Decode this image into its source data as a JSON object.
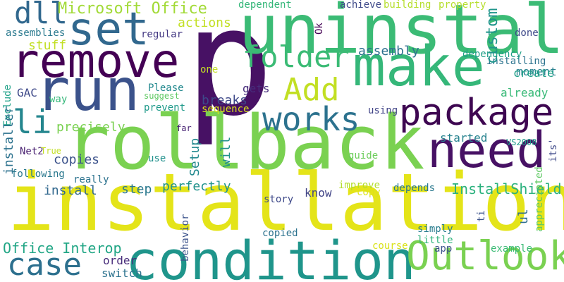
{
  "words": [
    {
      "text": "p",
      "color": "#471164",
      "rotated": false
    },
    {
      "text": "installation",
      "color": "#e4e419",
      "rotated": false
    },
    {
      "text": "rollback",
      "color": "#7ad151",
      "rotated": false
    },
    {
      "text": "uninstall",
      "color": "#3bbb75",
      "rotated": false
    },
    {
      "text": "condition",
      "color": "#1f958b",
      "rotated": false
    },
    {
      "text": "make",
      "color": "#35b779",
      "rotated": false
    },
    {
      "text": "need",
      "color": "#471164",
      "rotated": false
    },
    {
      "text": "package",
      "color": "#3e0751",
      "rotated": false
    },
    {
      "text": "remove",
      "color": "#440154",
      "rotated": false
    },
    {
      "text": "run",
      "color": "#3b528b",
      "rotated": false
    },
    {
      "text": "set",
      "color": "#31688e",
      "rotated": false
    },
    {
      "text": "Outlook",
      "color": "#7ad151",
      "rotated": false
    },
    {
      "text": "works",
      "color": "#2c728e",
      "rotated": false
    },
    {
      "text": "folder",
      "color": "#3bbb75",
      "rotated": false
    },
    {
      "text": "Add",
      "color": "#c2df23",
      "rotated": false
    },
    {
      "text": "case",
      "color": "#2d708e",
      "rotated": false
    },
    {
      "text": "dll",
      "color": "#31688e",
      "rotated": false
    },
    {
      "text": "li",
      "color": "#24868e",
      "rotated": false
    },
    {
      "text": "Microsoft Office",
      "color": "#a2da37",
      "rotated": false
    },
    {
      "text": "Office Interop",
      "color": "#21a685",
      "rotated": false
    },
    {
      "text": "InstallShield",
      "color": "#2cb17e",
      "rotated": false
    },
    {
      "text": "assembly",
      "color": "#2d708e",
      "rotated": false
    },
    {
      "text": "moment",
      "color": "#27808e",
      "rotated": false
    },
    {
      "text": "installing",
      "color": "#2c738e",
      "rotated": false
    },
    {
      "text": "create",
      "color": "#1fa188",
      "rotated": false
    },
    {
      "text": "already",
      "color": "#38b977",
      "rotated": false
    },
    {
      "text": "precisely",
      "color": "#7ad151",
      "rotated": false
    },
    {
      "text": "copies",
      "color": "#3b528b",
      "rotated": false
    },
    {
      "text": "perfectly",
      "color": "#20928c",
      "rotated": false
    },
    {
      "text": "install",
      "color": "#31688e",
      "rotated": false
    },
    {
      "text": "step",
      "color": "#2a788e",
      "rotated": false
    },
    {
      "text": "breaks",
      "color": "#3e4989",
      "rotated": false
    },
    {
      "text": "gets",
      "color": "#472d7b",
      "rotated": false
    },
    {
      "text": "started",
      "color": "#26828e",
      "rotated": false
    },
    {
      "text": "order",
      "color": "#472c7a",
      "rotated": false
    },
    {
      "text": "switch",
      "color": "#2c728e",
      "rotated": false
    },
    {
      "text": "know",
      "color": "#414487",
      "rotated": false
    },
    {
      "text": "depends",
      "color": "#2a788e",
      "rotated": false
    },
    {
      "text": "actions",
      "color": "#c2df23",
      "rotated": false
    },
    {
      "text": "dependent",
      "color": "#35b779",
      "rotated": false
    },
    {
      "text": "achieve",
      "color": "#3e4989",
      "rotated": false
    },
    {
      "text": "building",
      "color": "#b5de2b",
      "rotated": false
    },
    {
      "text": "property",
      "color": "#b5de2b",
      "rotated": false
    },
    {
      "text": "regular",
      "color": "#443983",
      "rotated": false
    },
    {
      "text": "assemblies",
      "color": "#29798e",
      "rotated": false
    },
    {
      "text": "stuff",
      "color": "#c2df23",
      "rotated": false
    },
    {
      "text": "dependency",
      "color": "#1f9f88",
      "rotated": false
    },
    {
      "text": "done",
      "color": "#3e4989",
      "rotated": false
    },
    {
      "text": "one",
      "color": "#c2df23",
      "rotated": false
    },
    {
      "text": "Please",
      "color": "#23898e",
      "rotated": false
    },
    {
      "text": "suggest",
      "color": "#5ec962",
      "rotated": false
    },
    {
      "text": "prevent",
      "color": "#1f9a8a",
      "rotated": false
    },
    {
      "text": "sequence",
      "color": "#d8e219",
      "rotated": false
    },
    {
      "text": "using",
      "color": "#414487",
      "rotated": false
    },
    {
      "text": "far",
      "color": "#482374",
      "rotated": false
    },
    {
      "text": "VS2008",
      "color": "#1e9b8a",
      "rotated": false
    },
    {
      "text": "GAC",
      "color": "#3e4989",
      "rotated": false
    },
    {
      "text": "way",
      "color": "#35b779",
      "rotated": false
    },
    {
      "text": "Net2",
      "color": "#481f70",
      "rotated": false
    },
    {
      "text": "True",
      "color": "#c2df23",
      "rotated": false
    },
    {
      "text": "following",
      "color": "#2a788e",
      "rotated": false
    },
    {
      "text": "use",
      "color": "#21918c",
      "rotated": false
    },
    {
      "text": "really",
      "color": "#2c728e",
      "rotated": false
    },
    {
      "text": "guide",
      "color": "#6ccd5a",
      "rotated": false
    },
    {
      "text": "improve",
      "color": "#b5de2b",
      "rotated": false
    },
    {
      "text": "copy",
      "color": "#dde318",
      "rotated": false
    },
    {
      "text": "story",
      "color": "#3e4989",
      "rotated": false
    },
    {
      "text": "copied",
      "color": "#2c728e",
      "rotated": false
    },
    {
      "text": "simply",
      "color": "#287c8e",
      "rotated": false
    },
    {
      "text": "little",
      "color": "#2fb47c",
      "rotated": false
    },
    {
      "text": "course",
      "color": "#d8e219",
      "rotated": false
    },
    {
      "text": "app",
      "color": "#3b528b",
      "rotated": false
    },
    {
      "text": "example",
      "color": "#3bbb75",
      "rotated": false
    },
    {
      "text": "custom",
      "color": "#1f958b",
      "rotated": true
    },
    {
      "text": "Ok",
      "color": "#440154",
      "rotated": true
    },
    {
      "text": "Exclude",
      "color": "#1fa188",
      "rotated": true
    },
    {
      "text": "installer",
      "color": "#2c728e",
      "rotated": true
    },
    {
      "text": "Setup",
      "color": "#23898e",
      "rotated": true
    },
    {
      "text": "will",
      "color": "#21918c",
      "rotated": true
    },
    {
      "text": "behavior",
      "color": "#3b528b",
      "rotated": true
    },
    {
      "text": "ti",
      "color": "#3b528b",
      "rotated": true
    },
    {
      "text": "ul",
      "color": "#2e6e8e",
      "rotated": true
    },
    {
      "text": "appreciated",
      "color": "#5ec962",
      "rotated": true
    },
    {
      "text": "its'",
      "color": "#3e4989",
      "rotated": true
    }
  ]
}
